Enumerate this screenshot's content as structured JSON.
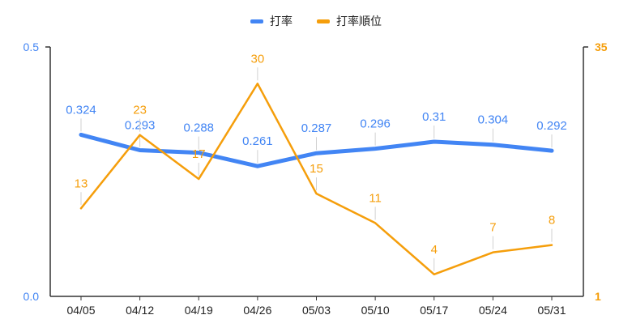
{
  "chart_data": {
    "type": "line",
    "categories": [
      "04/05",
      "04/12",
      "04/19",
      "04/26",
      "05/03",
      "05/10",
      "05/17",
      "05/24",
      "05/31"
    ],
    "series": [
      {
        "name": "打率",
        "axis": "left",
        "color": "#4285F4",
        "values": [
          0.324,
          0.293,
          0.288,
          0.261,
          0.287,
          0.296,
          0.31,
          0.304,
          0.292
        ],
        "labels": [
          "0.324",
          "0.293",
          "0.288",
          "0.261",
          "0.287",
          "0.296",
          "0.31",
          "0.304",
          "0.292"
        ]
      },
      {
        "name": "打率順位",
        "axis": "right",
        "color": "#F59E0B",
        "values": [
          13,
          23,
          17,
          30,
          15,
          11,
          4,
          7,
          8
        ],
        "labels": [
          "13",
          "23",
          "17",
          "30",
          "15",
          "11",
          "4",
          "7",
          "8"
        ]
      }
    ],
    "y_left": {
      "min": 0.0,
      "max": 0.5,
      "ticks": [
        "0.0",
        "0.5"
      ],
      "color": "#4285F4"
    },
    "y_right": {
      "min": 1,
      "max": 35,
      "inverted": true,
      "ticks": [
        "1",
        "35"
      ],
      "color": "#F59E0B"
    },
    "legend_position": "top-center",
    "grid": false
  }
}
